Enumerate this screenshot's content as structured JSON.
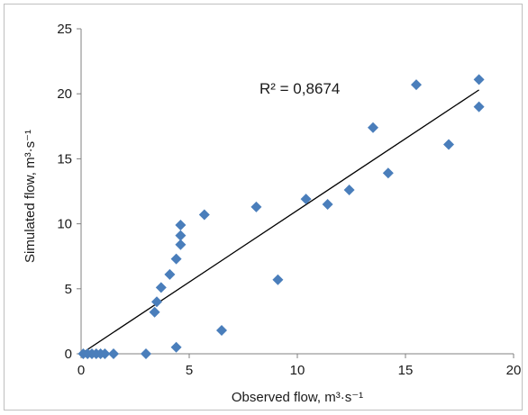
{
  "chart_data": {
    "type": "scatter",
    "title": "",
    "xlabel": "Observed flow, m³·s⁻¹",
    "ylabel": "Simulated flow, m³·s⁻¹",
    "xlim": [
      0,
      20
    ],
    "ylim": [
      0,
      25
    ],
    "xticks": [
      0,
      5,
      10,
      15,
      20
    ],
    "yticks": [
      0,
      5,
      10,
      15,
      20,
      25
    ],
    "grid": false,
    "legend": "none",
    "marker_color": "#4a7ebb",
    "trendline_color": "#000000",
    "annotation": "R² = 0,8674",
    "trendline": {
      "x": [
        0,
        18.4
      ],
      "y": [
        0,
        20.3
      ]
    },
    "series": [
      {
        "points": [
          {
            "x": 0.1,
            "y": 0.0
          },
          {
            "x": 0.3,
            "y": 0.0
          },
          {
            "x": 0.5,
            "y": 0.0
          },
          {
            "x": 0.7,
            "y": 0.0
          },
          {
            "x": 0.9,
            "y": 0.0
          },
          {
            "x": 1.1,
            "y": 0.0
          },
          {
            "x": 1.5,
            "y": 0.0
          },
          {
            "x": 3.0,
            "y": 0.0
          },
          {
            "x": 4.4,
            "y": 0.5
          },
          {
            "x": 3.4,
            "y": 3.2
          },
          {
            "x": 3.5,
            "y": 4.0
          },
          {
            "x": 3.7,
            "y": 5.1
          },
          {
            "x": 4.1,
            "y": 6.1
          },
          {
            "x": 4.4,
            "y": 7.3
          },
          {
            "x": 4.6,
            "y": 8.4
          },
          {
            "x": 4.6,
            "y": 9.1
          },
          {
            "x": 4.6,
            "y": 9.9
          },
          {
            "x": 5.7,
            "y": 10.7
          },
          {
            "x": 6.5,
            "y": 1.8
          },
          {
            "x": 8.1,
            "y": 11.3
          },
          {
            "x": 9.1,
            "y": 5.7
          },
          {
            "x": 10.4,
            "y": 11.9
          },
          {
            "x": 11.4,
            "y": 11.5
          },
          {
            "x": 12.4,
            "y": 12.6
          },
          {
            "x": 13.5,
            "y": 17.4
          },
          {
            "x": 14.2,
            "y": 13.9
          },
          {
            "x": 15.5,
            "y": 20.7
          },
          {
            "x": 17.0,
            "y": 16.1
          },
          {
            "x": 18.4,
            "y": 21.1
          },
          {
            "x": 18.4,
            "y": 19.0
          }
        ]
      }
    ]
  }
}
